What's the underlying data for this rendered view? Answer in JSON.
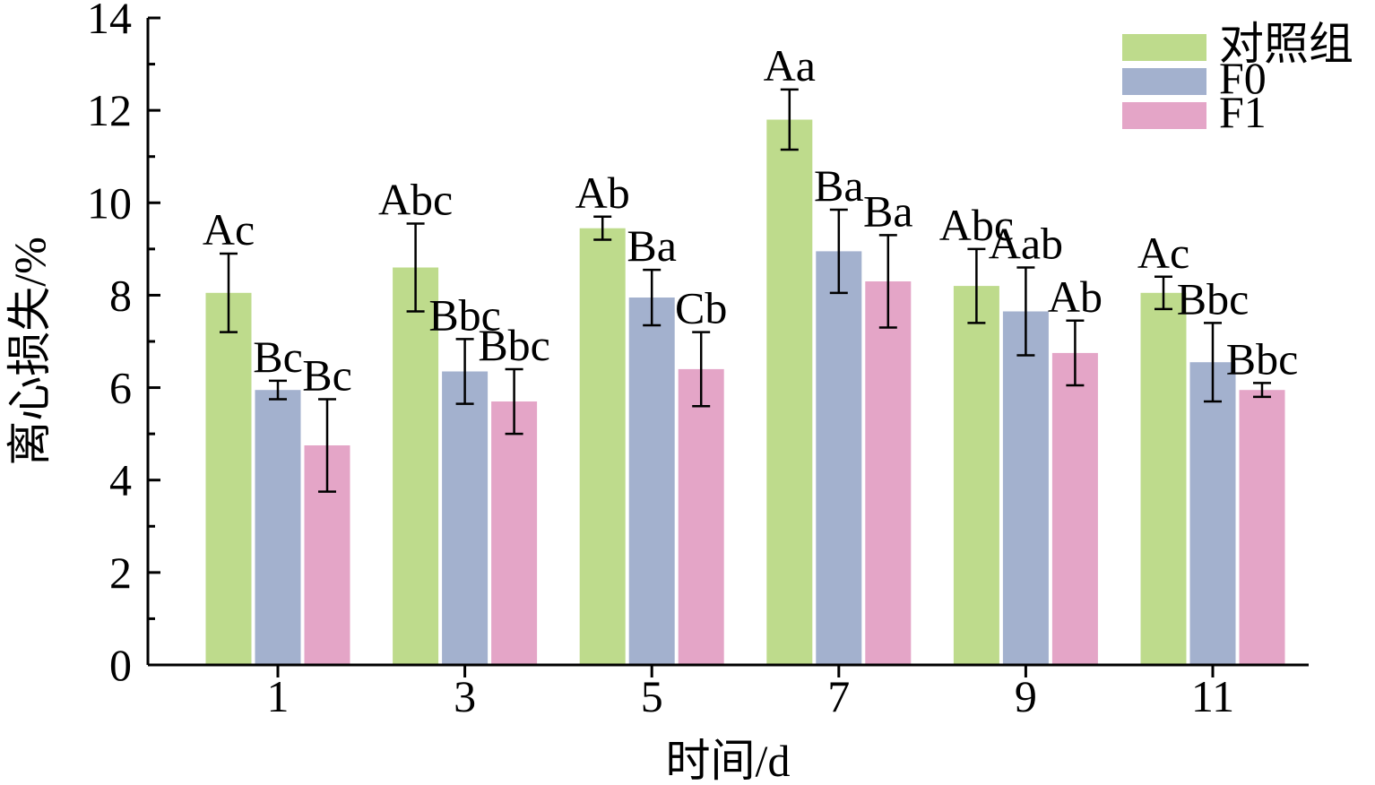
{
  "chart_data": {
    "type": "bar",
    "title": "",
    "xlabel": "时间/d",
    "ylabel": "离心损失/%",
    "categories": [
      "1",
      "3",
      "5",
      "7",
      "9",
      "11"
    ],
    "ylim": [
      0,
      14
    ],
    "yticks": [
      0,
      2,
      4,
      6,
      8,
      10,
      12,
      14
    ],
    "grid": false,
    "legend_position": "top-right",
    "series": [
      {
        "name": "对照组",
        "color": "#bedb8c",
        "values": [
          8.05,
          8.6,
          9.45,
          11.8,
          8.2,
          8.05
        ],
        "errors": [
          0.85,
          0.95,
          0.25,
          0.65,
          0.8,
          0.35
        ],
        "labels": [
          "Ac",
          "Abc",
          "Ab",
          "Aa",
          "Abc",
          "Ac"
        ]
      },
      {
        "name": "F0",
        "color": "#a3b1ce",
        "values": [
          5.95,
          6.35,
          7.95,
          8.95,
          7.65,
          6.55
        ],
        "errors": [
          0.2,
          0.7,
          0.6,
          0.9,
          0.95,
          0.85
        ],
        "labels": [
          "Bc",
          "Bbc",
          "Ba",
          "Ba",
          "Aab",
          "Bbc"
        ]
      },
      {
        "name": "F1",
        "color": "#e4a5c7",
        "values": [
          4.75,
          5.7,
          6.4,
          8.3,
          6.75,
          5.95
        ],
        "errors": [
          1.0,
          0.7,
          0.8,
          1.0,
          0.7,
          0.15
        ],
        "labels": [
          "Bc",
          "Bbc",
          "Cb",
          "Ba",
          "Ab",
          "Bbc"
        ]
      }
    ]
  }
}
